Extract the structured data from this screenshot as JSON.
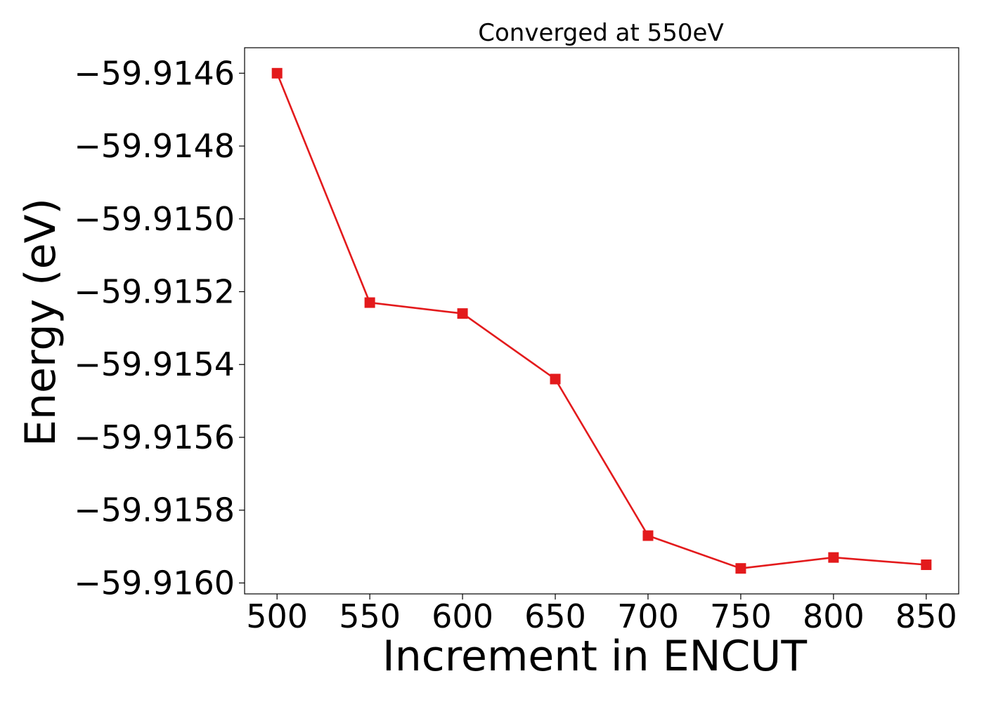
{
  "chart_data": {
    "type": "line",
    "title": "Converged at 550eV",
    "xlabel": "Increment in ENCUT",
    "ylabel": "Energy (eV)",
    "x": [
      500,
      550,
      600,
      650,
      700,
      750,
      800,
      850
    ],
    "series": [
      {
        "values": [
          -59.9146,
          -59.91523,
          -59.91526,
          -59.91544,
          -59.91587,
          -59.91596,
          -59.91593,
          -59.91595
        ],
        "color": "#e31a1c",
        "marker": "square"
      }
    ],
    "xticks": [
      500,
      550,
      600,
      650,
      700,
      750,
      800,
      850
    ],
    "xtick_labels": [
      "500",
      "550",
      "600",
      "650",
      "700",
      "750",
      "800",
      "850"
    ],
    "yticks": [
      -59.9146,
      -59.9148,
      -59.915,
      -59.9152,
      -59.9154,
      -59.9156,
      -59.9158,
      -59.916
    ],
    "ytick_labels": [
      "−59.9146",
      "−59.9148",
      "−59.9150",
      "−59.9152",
      "−59.9154",
      "−59.9156",
      "−59.9158",
      "−59.9160"
    ],
    "xlim": [
      482.5,
      867.5
    ],
    "ylim": [
      -59.91603,
      -59.91453
    ],
    "grid": false,
    "legend": false
  }
}
